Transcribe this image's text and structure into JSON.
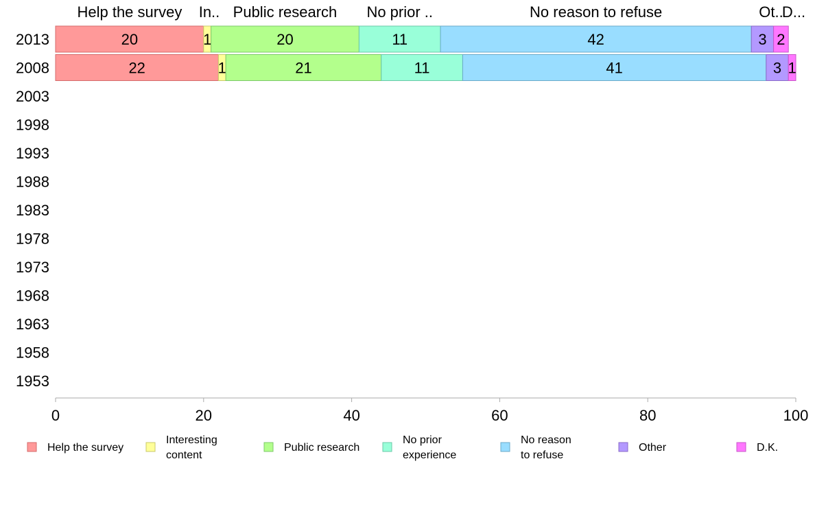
{
  "chart_data": {
    "type": "bar",
    "orientation": "horizontal",
    "stacked": true,
    "categories": [
      "2013",
      "2008",
      "2003",
      "1998",
      "1993",
      "1988",
      "1983",
      "1978",
      "1973",
      "1968",
      "1963",
      "1958",
      "1953"
    ],
    "series": [
      {
        "name": "Help the survey",
        "legend_lines": [
          "Help the survey"
        ],
        "header": "Help the survey",
        "color": "#ff9999",
        "stroke": "#d46a6a",
        "values": [
          20,
          22,
          null,
          null,
          null,
          null,
          null,
          null,
          null,
          null,
          null,
          null,
          null
        ],
        "labels": [
          "20",
          "22"
        ]
      },
      {
        "name": "Interesting content",
        "legend_lines": [
          "Interesting",
          "content"
        ],
        "header": "In..",
        "color": "#ffff99",
        "stroke": "#c8c86a",
        "values": [
          1,
          1,
          null,
          null,
          null,
          null,
          null,
          null,
          null,
          null,
          null,
          null,
          null
        ],
        "labels": [
          "1",
          "1"
        ]
      },
      {
        "name": "Public research",
        "legend_lines": [
          "Public research"
        ],
        "header": "Public research",
        "color": "#b3ff8c",
        "stroke": "#7cc86a",
        "values": [
          20,
          21,
          null,
          null,
          null,
          null,
          null,
          null,
          null,
          null,
          null,
          null,
          null
        ],
        "labels": [
          "20",
          "21"
        ]
      },
      {
        "name": "No prior experience",
        "legend_lines": [
          "No prior",
          "experience"
        ],
        "header": "No prior ..",
        "color": "#99ffd9",
        "stroke": "#6ac8a8",
        "values": [
          11,
          11,
          null,
          null,
          null,
          null,
          null,
          null,
          null,
          null,
          null,
          null,
          null
        ],
        "labels": [
          "11",
          "11"
        ]
      },
      {
        "name": "No reason to refuse",
        "legend_lines": [
          "No reason",
          "to refuse"
        ],
        "header": "No reason to refuse",
        "color": "#99ddff",
        "stroke": "#6aaac8",
        "values": [
          42,
          41,
          null,
          null,
          null,
          null,
          null,
          null,
          null,
          null,
          null,
          null,
          null
        ],
        "labels": [
          "42",
          "41"
        ]
      },
      {
        "name": "Other",
        "legend_lines": [
          "Other"
        ],
        "header": "Ot..",
        "color": "#b399ff",
        "stroke": "#8a6ac8",
        "values": [
          3,
          3,
          null,
          null,
          null,
          null,
          null,
          null,
          null,
          null,
          null,
          null,
          null
        ],
        "labels": [
          "3",
          "3"
        ]
      },
      {
        "name": "D.K.",
        "legend_lines": [
          "D.K."
        ],
        "header": "D...",
        "color": "#ff77ff",
        "stroke": "#c855c8",
        "values": [
          2,
          1,
          null,
          null,
          null,
          null,
          null,
          null,
          null,
          null,
          null,
          null,
          null
        ],
        "labels": [
          "2",
          "1"
        ]
      }
    ],
    "xlim": [
      0,
      100
    ],
    "xticks": [
      0,
      20,
      40,
      60,
      80,
      100
    ],
    "title": "",
    "xlabel": "",
    "ylabel": "",
    "grid": false,
    "legend_position": "bottom"
  }
}
